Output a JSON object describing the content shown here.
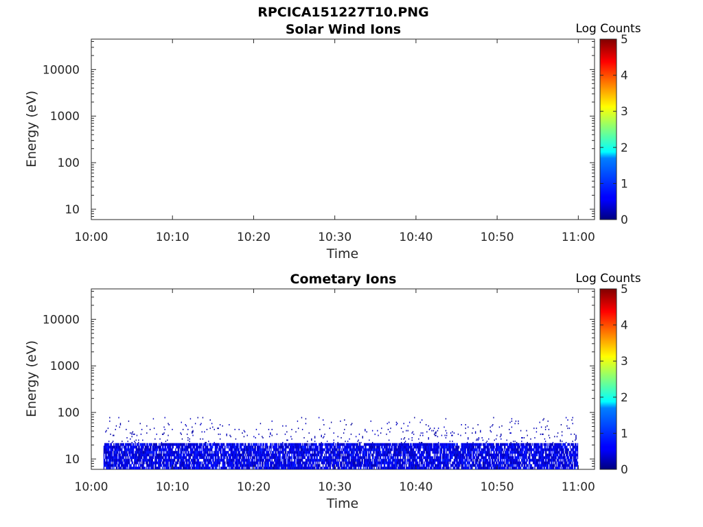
{
  "figure_title": "RPCICA151227T10.PNG",
  "chart_data": [
    {
      "type": "heatmap",
      "title": "Solar Wind Ions",
      "xlabel": "Time",
      "ylabel": "Energy (eV)",
      "x_ticks": [
        "10:00",
        "10:10",
        "10:20",
        "10:30",
        "10:40",
        "10:50",
        "11:00"
      ],
      "xlim_minutes": [
        0,
        62
      ],
      "y_scale": "log",
      "y_ticks": [
        10,
        100,
        1000,
        10000
      ],
      "y_tick_labels": [
        "10",
        "100",
        "1000",
        "10000"
      ],
      "ylim": [
        6,
        45000
      ],
      "colorbar": {
        "label": "Log Counts",
        "range": [
          0,
          5
        ],
        "ticks": [
          "0",
          "1",
          "2",
          "3",
          "4",
          "5"
        ],
        "colormap": "jet"
      },
      "data": []
    },
    {
      "type": "heatmap",
      "title": "Cometary Ions",
      "xlabel": "Time",
      "ylabel": "Energy (eV)",
      "x_ticks": [
        "10:00",
        "10:10",
        "10:20",
        "10:30",
        "10:40",
        "10:50",
        "11:00"
      ],
      "xlim_minutes": [
        0,
        62
      ],
      "y_scale": "log",
      "y_ticks": [
        10,
        100,
        1000,
        10000
      ],
      "y_tick_labels": [
        "10",
        "100",
        "1000",
        "10000"
      ],
      "ylim": [
        6,
        45000
      ],
      "colorbar": {
        "label": "Log Counts",
        "range": [
          0,
          5
        ],
        "ticks": [
          "0",
          "1",
          "2",
          "3",
          "4",
          "5"
        ],
        "colormap": "jet"
      },
      "data_time_range_minutes": [
        1.5,
        60
      ],
      "data": [
        {
          "energy_range_eV": [
            6,
            22
          ],
          "log_counts_range": [
            0.2,
            0.8
          ],
          "coverage": "continuous"
        },
        {
          "energy_range_eV": [
            22,
            80
          ],
          "log_counts_range": [
            0.1,
            0.4
          ],
          "coverage": "sparse"
        }
      ]
    }
  ]
}
